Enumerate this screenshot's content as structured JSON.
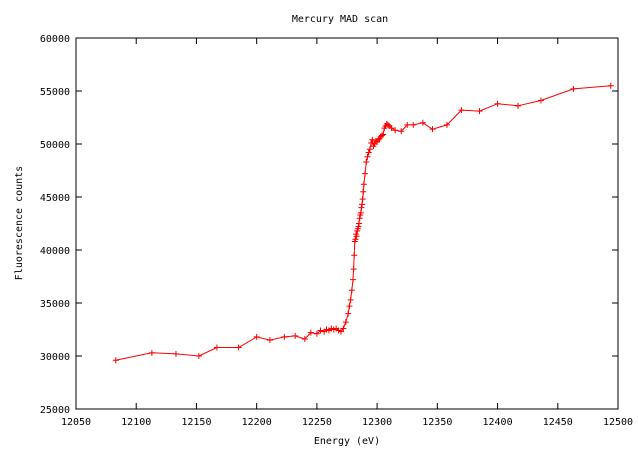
{
  "chart_data": {
    "type": "line",
    "title": "Mercury MAD scan",
    "xlabel": "Energy (eV)",
    "ylabel": "Fluorescence counts",
    "xlim": [
      12050,
      12500
    ],
    "ylim": [
      25000,
      60000
    ],
    "xticks": [
      12050,
      12100,
      12150,
      12200,
      12250,
      12300,
      12350,
      12400,
      12450,
      12500
    ],
    "yticks": [
      25000,
      30000,
      35000,
      40000,
      45000,
      50000,
      55000,
      60000
    ],
    "grid": false,
    "legend": "none",
    "series_color": "#ff0000",
    "marker": "plus",
    "x": [
      12083,
      12113,
      12133,
      12152,
      12167,
      12185,
      12200,
      12211,
      12223,
      12232,
      12240,
      12245,
      12250,
      12253,
      12256,
      12258,
      12260,
      12262,
      12264,
      12266,
      12268,
      12270,
      12272,
      12274,
      12276,
      12277,
      12278,
      12279,
      12280,
      12280.5,
      12281,
      12281.5,
      12282,
      12282.5,
      12283,
      12283.5,
      12284,
      12284.5,
      12285,
      12285.5,
      12286,
      12286.5,
      12287,
      12287.5,
      12288,
      12288.5,
      12289,
      12290,
      12291,
      12292,
      12293,
      12294,
      12295,
      12296,
      12297,
      12298,
      12299,
      12300,
      12301,
      12302,
      12303,
      12304,
      12305,
      12306,
      12307,
      12308,
      12309,
      12310,
      12312,
      12315,
      12320,
      12325,
      12330,
      12338,
      12346,
      12358,
      12370,
      12385,
      12400,
      12417,
      12436,
      12463,
      12494
    ],
    "y": [
      29600,
      30300,
      30200,
      30000,
      30800,
      30800,
      31800,
      31500,
      31800,
      31900,
      31600,
      32200,
      32100,
      32400,
      32300,
      32500,
      32400,
      32600,
      32500,
      32600,
      32400,
      32300,
      32600,
      33200,
      34000,
      34700,
      35300,
      36200,
      37200,
      38200,
      39500,
      40800,
      41000,
      41500,
      41300,
      41800,
      42000,
      42200,
      42500,
      43000,
      43300,
      43500,
      44000,
      44300,
      44800,
      45500,
      46200,
      47200,
      48300,
      48800,
      49200,
      49500,
      50100,
      50400,
      49800,
      50000,
      50300,
      50200,
      50400,
      50500,
      50700,
      50800,
      50900,
      51500,
      51700,
      51900,
      51800,
      51700,
      51500,
      51300,
      51200,
      51800,
      51800,
      52000,
      51400,
      51800,
      53200,
      53100,
      53800,
      53600,
      54100,
      55200,
      55500
    ]
  }
}
